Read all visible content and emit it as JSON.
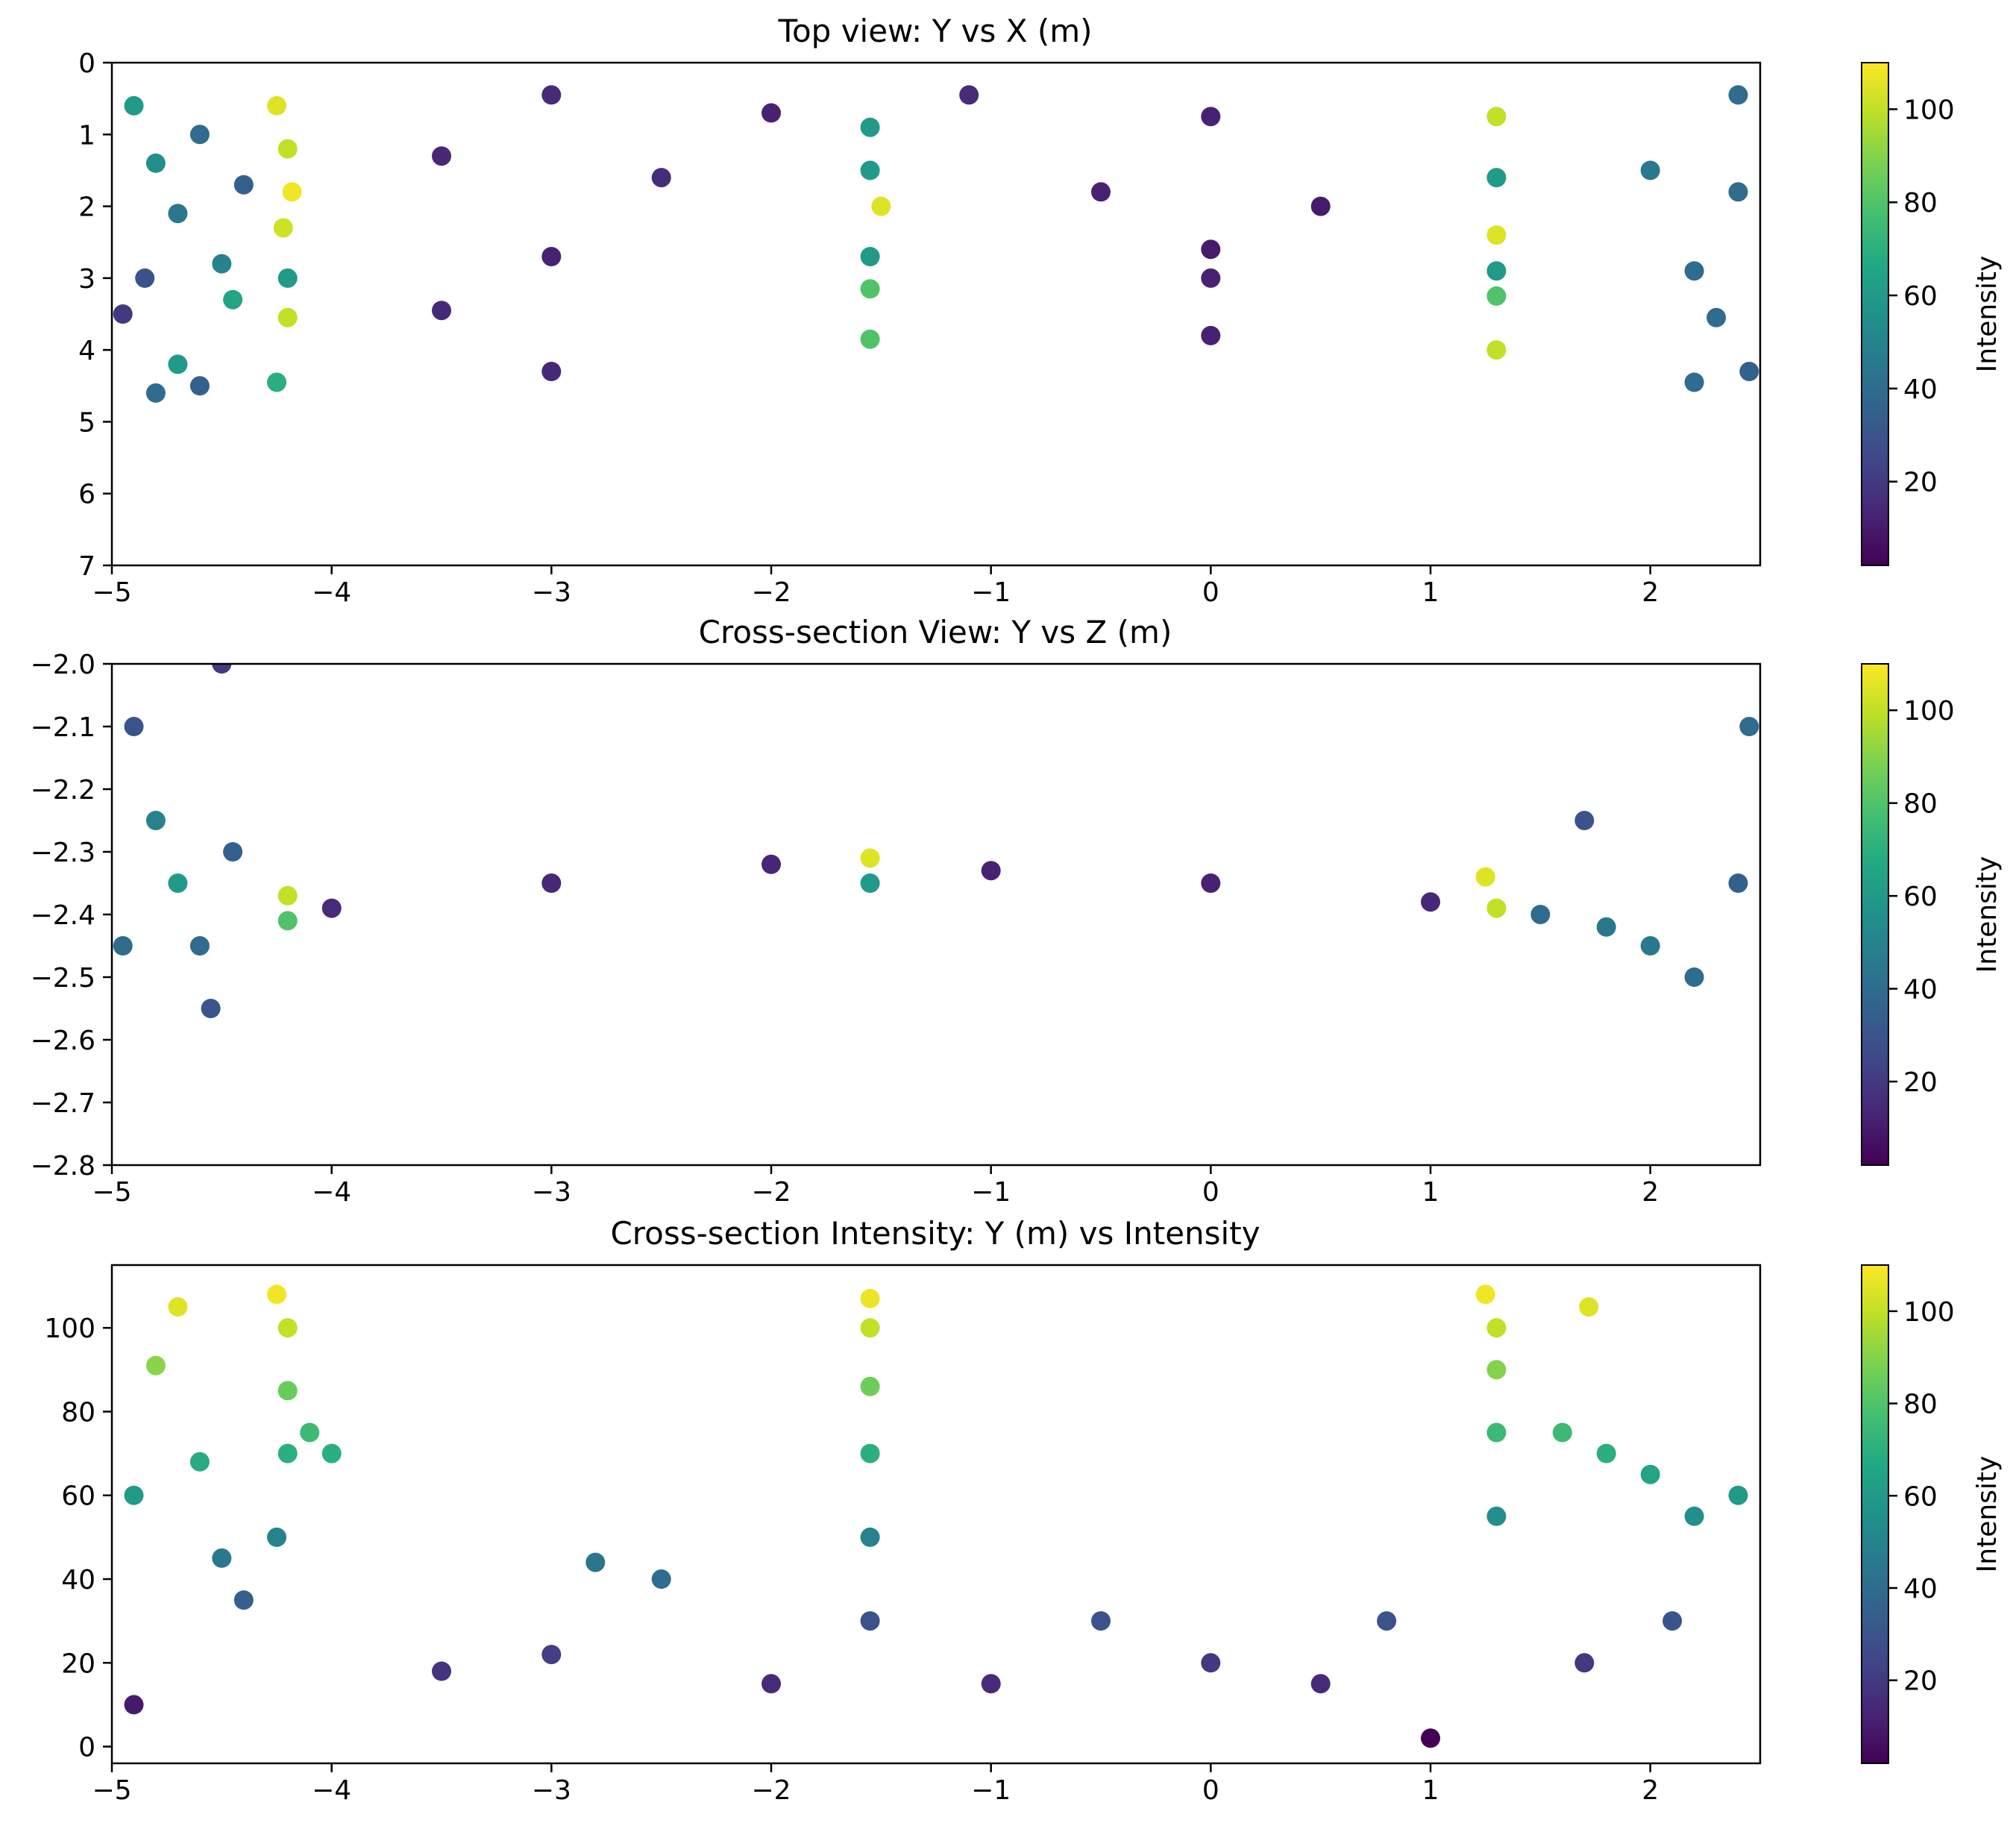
{
  "chart_data": [
    {
      "type": "scatter",
      "title": "Top view: Y vs X (m)",
      "xlabel": "",
      "ylabel": "",
      "xlim": [
        -5,
        2.5
      ],
      "ylim": [
        7,
        0
      ],
      "y_inverted": true,
      "xticks": [
        -5,
        -4,
        -3,
        -2,
        -1,
        0,
        1,
        2
      ],
      "xtick_labels": [
        "−5",
        "−4",
        "−3",
        "−2",
        "−1",
        "0",
        "1",
        "2"
      ],
      "yticks": [
        0,
        1,
        2,
        3,
        4,
        5,
        6,
        7
      ],
      "ytick_labels": [
        "0",
        "1",
        "2",
        "3",
        "4",
        "5",
        "6",
        "7"
      ],
      "grid": false,
      "colormap": "viridis",
      "colorbar": {
        "label": "Intensity",
        "range": [
          2,
          110
        ],
        "ticks": [
          20,
          40,
          60,
          80,
          100
        ],
        "tick_labels": [
          "20",
          "40",
          "60",
          "80",
          "100"
        ]
      },
      "series": [
        {
          "points": [
            [
              -4.9,
              0.6,
              60
            ],
            [
              -4.8,
              1.4,
              55
            ],
            [
              -4.7,
              2.1,
              45
            ],
            [
              -4.6,
              1.0,
              40
            ],
            [
              -4.5,
              2.8,
              50
            ],
            [
              -4.45,
              3.3,
              65
            ],
            [
              -4.4,
              1.7,
              35
            ],
            [
              -4.85,
              3.0,
              30
            ],
            [
              -4.95,
              3.5,
              20
            ],
            [
              -4.25,
              0.6,
              105
            ],
            [
              -4.2,
              1.2,
              100
            ],
            [
              -4.18,
              1.8,
              108
            ],
            [
              -4.22,
              2.3,
              102
            ],
            [
              -4.2,
              3.0,
              60
            ],
            [
              -4.2,
              3.55,
              100
            ],
            [
              -4.25,
              4.45,
              70
            ],
            [
              -4.6,
              4.5,
              35
            ],
            [
              -4.8,
              4.6,
              40
            ],
            [
              -4.7,
              4.2,
              60
            ],
            [
              -3.0,
              0.45,
              15
            ],
            [
              -2.0,
              0.7,
              12
            ],
            [
              -1.55,
              0.9,
              60
            ],
            [
              -1.1,
              0.45,
              15
            ],
            [
              0,
              0.75,
              12
            ],
            [
              1.3,
              0.75,
              100
            ],
            [
              2.4,
              0.45,
              40
            ],
            [
              -3.5,
              1.3,
              14
            ],
            [
              -2.5,
              1.6,
              16
            ],
            [
              -1.55,
              1.5,
              60
            ],
            [
              -1.5,
              2.0,
              105
            ],
            [
              -0.5,
              1.8,
              12
            ],
            [
              0.5,
              2.0,
              10
            ],
            [
              1.3,
              1.6,
              60
            ],
            [
              1.3,
              2.4,
              105
            ],
            [
              2.0,
              1.5,
              45
            ],
            [
              2.4,
              1.8,
              40
            ],
            [
              -3.0,
              2.7,
              12
            ],
            [
              -1.55,
              2.7,
              60
            ],
            [
              0,
              2.6,
              10
            ],
            [
              1.3,
              2.9,
              60
            ],
            [
              2.2,
              2.9,
              40
            ],
            [
              -3.5,
              3.45,
              14
            ],
            [
              -1.55,
              3.15,
              80
            ],
            [
              0,
              3.0,
              12
            ],
            [
              1.3,
              3.25,
              80
            ],
            [
              2.3,
              3.55,
              40
            ],
            [
              -3.0,
              4.3,
              14
            ],
            [
              -1.55,
              3.85,
              80
            ],
            [
              0,
              3.8,
              12
            ],
            [
              1.3,
              4.0,
              100
            ],
            [
              2.2,
              4.45,
              40
            ],
            [
              2.45,
              4.3,
              35
            ]
          ]
        }
      ]
    },
    {
      "type": "scatter",
      "title": "Cross-section View: Y vs Z (m)",
      "xlabel": "",
      "ylabel": "",
      "xlim": [
        -5,
        2.5
      ],
      "ylim": [
        -2.8,
        -2.0
      ],
      "xticks": [
        -5,
        -4,
        -3,
        -2,
        -1,
        0,
        1,
        2
      ],
      "xtick_labels": [
        "−5",
        "−4",
        "−3",
        "−2",
        "−1",
        "0",
        "1",
        "2"
      ],
      "yticks": [
        -2.8,
        -2.7,
        -2.6,
        -2.5,
        -2.4,
        -2.3,
        -2.2,
        -2.1,
        -2.0
      ],
      "ytick_labels": [
        "−2.8",
        "−2.7",
        "−2.6",
        "−2.5",
        "−2.4",
        "−2.3",
        "−2.2",
        "−2.1",
        "−2.0"
      ],
      "grid": false,
      "colormap": "viridis",
      "colorbar": {
        "label": "Intensity",
        "range": [
          2,
          110
        ],
        "ticks": [
          20,
          40,
          60,
          80,
          100
        ],
        "tick_labels": [
          "20",
          "40",
          "60",
          "80",
          "100"
        ]
      },
      "series": [
        {
          "points": [
            [
              -4.9,
              -2.1,
              30
            ],
            [
              -4.8,
              -2.25,
              50
            ],
            [
              -4.7,
              -2.35,
              60
            ],
            [
              -4.6,
              -2.45,
              40
            ],
            [
              -4.55,
              -2.55,
              30
            ],
            [
              -4.5,
              -2.0,
              20
            ],
            [
              -4.45,
              -2.3,
              35
            ],
            [
              -4.95,
              -2.45,
              40
            ],
            [
              -4.2,
              -2.37,
              100
            ],
            [
              -4.2,
              -2.41,
              80
            ],
            [
              -4.0,
              -2.39,
              15
            ],
            [
              -3.0,
              -2.35,
              14
            ],
            [
              -2.0,
              -2.32,
              13
            ],
            [
              -1.55,
              -2.31,
              105
            ],
            [
              -1.55,
              -2.35,
              60
            ],
            [
              -1.0,
              -2.33,
              12
            ],
            [
              0,
              -2.35,
              12
            ],
            [
              1.0,
              -2.38,
              14
            ],
            [
              1.25,
              -2.34,
              105
            ],
            [
              1.3,
              -2.39,
              100
            ],
            [
              1.5,
              -2.4,
              40
            ],
            [
              1.7,
              -2.25,
              30
            ],
            [
              1.8,
              -2.42,
              45
            ],
            [
              2.0,
              -2.45,
              45
            ],
            [
              2.2,
              -2.5,
              40
            ],
            [
              2.45,
              -2.1,
              40
            ],
            [
              2.4,
              -2.35,
              35
            ]
          ]
        }
      ]
    },
    {
      "type": "scatter",
      "title": "Cross-section Intensity: Y (m) vs Intensity",
      "xlabel": "",
      "ylabel": "",
      "xlim": [
        -5,
        2.5
      ],
      "ylim": [
        -4,
        115
      ],
      "xticks": [
        -5,
        -4,
        -3,
        -2,
        -1,
        0,
        1,
        2
      ],
      "xtick_labels": [
        "−5",
        "−4",
        "−3",
        "−2",
        "−1",
        "0",
        "1",
        "2"
      ],
      "yticks": [
        0,
        20,
        40,
        60,
        80,
        100
      ],
      "ytick_labels": [
        "0",
        "20",
        "40",
        "60",
        "80",
        "100"
      ],
      "grid": false,
      "colormap": "viridis",
      "colorbar": {
        "label": "Intensity",
        "range": [
          2,
          110
        ],
        "ticks": [
          20,
          40,
          60,
          80,
          100
        ],
        "tick_labels": [
          "20",
          "40",
          "60",
          "80",
          "100"
        ]
      },
      "series": [
        {
          "points": [
            [
              -4.9,
              60,
              60
            ],
            [
              -4.8,
              91,
              91
            ],
            [
              -4.7,
              105,
              105
            ],
            [
              -4.6,
              68,
              68
            ],
            [
              -4.5,
              45,
              45
            ],
            [
              -4.4,
              35,
              35
            ],
            [
              -4.9,
              10,
              10
            ],
            [
              -4.25,
              108,
              108
            ],
            [
              -4.2,
              100,
              100
            ],
            [
              -4.2,
              85,
              85
            ],
            [
              -4.2,
              70,
              70
            ],
            [
              -4.25,
              50,
              50
            ],
            [
              -4.1,
              75,
              75
            ],
            [
              -4.0,
              70,
              70
            ],
            [
              -3.5,
              18,
              18
            ],
            [
              -3.0,
              22,
              22
            ],
            [
              -2.8,
              44,
              44
            ],
            [
              -2.5,
              40,
              40
            ],
            [
              -2.0,
              15,
              15
            ],
            [
              -1.55,
              107,
              107
            ],
            [
              -1.55,
              100,
              100
            ],
            [
              -1.55,
              86,
              86
            ],
            [
              -1.55,
              70,
              70
            ],
            [
              -1.55,
              50,
              50
            ],
            [
              -1.55,
              30,
              30
            ],
            [
              -1.0,
              15,
              15
            ],
            [
              -0.5,
              30,
              30
            ],
            [
              0,
              20,
              20
            ],
            [
              0.5,
              15,
              15
            ],
            [
              1.0,
              2,
              2
            ],
            [
              0.8,
              30,
              30
            ],
            [
              1.25,
              108,
              108
            ],
            [
              1.3,
              100,
              100
            ],
            [
              1.3,
              90,
              90
            ],
            [
              1.3,
              75,
              75
            ],
            [
              1.3,
              55,
              55
            ],
            [
              1.72,
              105,
              105
            ],
            [
              1.6,
              75,
              75
            ],
            [
              1.8,
              70,
              70
            ],
            [
              2.0,
              65,
              65
            ],
            [
              2.2,
              55,
              55
            ],
            [
              2.4,
              60,
              60
            ],
            [
              2.1,
              30,
              30
            ],
            [
              1.7,
              20,
              20
            ]
          ]
        }
      ]
    }
  ]
}
